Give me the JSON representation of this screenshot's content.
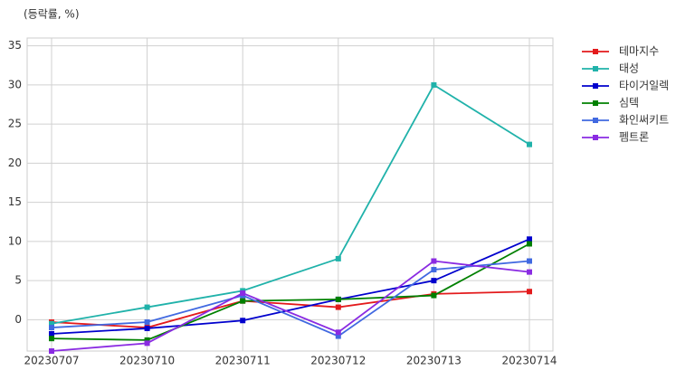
{
  "chart_data": {
    "type": "line",
    "y_label": "(등락률, %)",
    "categories": [
      "20230707",
      "20230710",
      "20230711",
      "20230712",
      "20230713",
      "20230714"
    ],
    "series": [
      {
        "name": "테마지수",
        "color": "#e31a1c",
        "values": [
          -0.3,
          -1.0,
          2.4,
          1.6,
          3.3,
          3.6
        ]
      },
      {
        "name": "태성",
        "color": "#20b2aa",
        "values": [
          -0.5,
          1.6,
          3.7,
          7.8,
          30.0,
          22.4
        ]
      },
      {
        "name": "타이거일렉",
        "color": "#0000cd",
        "values": [
          -1.8,
          -1.1,
          -0.1,
          2.6,
          5.0,
          10.3
        ]
      },
      {
        "name": "심텍",
        "color": "#008000",
        "values": [
          -2.4,
          -2.6,
          2.4,
          2.6,
          3.1,
          9.7
        ]
      },
      {
        "name": "화인써키트",
        "color": "#4169e1",
        "values": [
          -1.0,
          -0.3,
          3.1,
          -2.1,
          6.4,
          7.5
        ]
      },
      {
        "name": "펨트론",
        "color": "#8a2be2",
        "values": [
          -4.0,
          -3.0,
          3.4,
          -1.6,
          7.5,
          6.1
        ]
      }
    ],
    "ylim": [
      -4,
      36
    ],
    "yticks": [
      0,
      5,
      10,
      15,
      20,
      25,
      30,
      35
    ],
    "grid": true,
    "legend": "outside-right"
  }
}
